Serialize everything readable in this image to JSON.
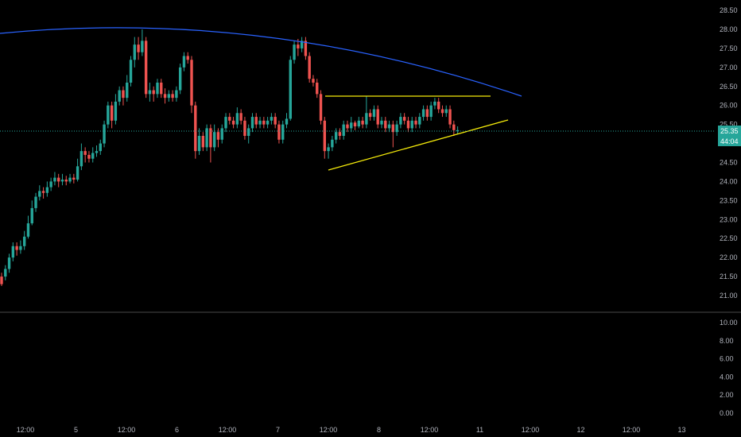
{
  "colors": {
    "background": "#000000",
    "up_candle": "#26a69a",
    "down_candle": "#ef5350",
    "curve": "#2962ff",
    "trendline": "#f5eb0a",
    "price_line": "#26a69a",
    "axis_text": "#b2b5be",
    "separator": "#4a4a4a"
  },
  "price_label": {
    "price": "25.35",
    "countdown": "44:04"
  },
  "chart_data": [
    {
      "type": "candlestick",
      "yaxis": {
        "ticks": [
          "28.50",
          "28.00",
          "27.50",
          "27.00",
          "26.50",
          "26.00",
          "25.50",
          "25.00",
          "24.50",
          "24.00",
          "23.50",
          "23.00",
          "22.50",
          "22.00",
          "21.50",
          "21.00"
        ],
        "range": [
          20.75,
          28.6
        ]
      },
      "xaxis": {
        "ticks": [
          "12:00",
          "5",
          "12:00",
          "6",
          "12:00",
          "7",
          "12:00",
          "8",
          "12:00",
          "11",
          "12:00",
          "12",
          "12:00",
          "13"
        ]
      },
      "grid": false,
      "last_price": 25.35,
      "candles": [
        [
          21.5,
          21.3,
          21.6,
          21.25
        ],
        [
          21.5,
          21.7,
          21.8,
          21.4
        ],
        [
          21.7,
          22.0,
          22.1,
          21.6
        ],
        [
          22.0,
          22.3,
          22.4,
          21.9
        ],
        [
          22.3,
          22.2,
          22.4,
          22.05
        ],
        [
          22.2,
          22.3,
          22.45,
          22.1
        ],
        [
          22.3,
          22.55,
          22.7,
          22.2
        ],
        [
          22.55,
          22.9,
          23.1,
          22.5
        ],
        [
          22.9,
          23.3,
          23.5,
          22.85
        ],
        [
          23.3,
          23.6,
          23.7,
          23.2
        ],
        [
          23.6,
          23.75,
          23.9,
          23.5
        ],
        [
          23.75,
          23.7,
          23.85,
          23.55
        ],
        [
          23.7,
          23.85,
          24.0,
          23.6
        ],
        [
          23.85,
          24.0,
          24.1,
          23.75
        ],
        [
          24.0,
          24.1,
          24.25,
          23.9
        ],
        [
          24.1,
          24.0,
          24.2,
          23.85
        ],
        [
          24.0,
          24.05,
          24.2,
          23.9
        ],
        [
          24.05,
          24.0,
          24.15,
          23.9
        ],
        [
          24.0,
          24.1,
          24.2,
          23.95
        ],
        [
          24.1,
          24.05,
          24.2,
          23.95
        ],
        [
          24.05,
          24.4,
          24.6,
          24.0
        ],
        [
          24.4,
          24.8,
          25.0,
          24.3
        ],
        [
          24.8,
          24.7,
          24.9,
          24.5
        ],
        [
          24.7,
          24.6,
          24.8,
          24.5
        ],
        [
          24.6,
          24.75,
          24.9,
          24.5
        ],
        [
          24.75,
          24.8,
          24.95,
          24.65
        ],
        [
          24.8,
          25.0,
          25.1,
          24.7
        ],
        [
          25.0,
          25.5,
          25.6,
          24.9
        ],
        [
          25.5,
          26.0,
          26.1,
          25.4
        ],
        [
          26.0,
          25.6,
          26.1,
          25.4
        ],
        [
          25.6,
          26.1,
          26.3,
          25.5
        ],
        [
          26.1,
          26.4,
          26.5,
          26.0
        ],
        [
          26.4,
          26.2,
          26.5,
          26.0
        ],
        [
          26.2,
          26.6,
          26.8,
          26.1
        ],
        [
          26.6,
          27.2,
          27.3,
          26.5
        ],
        [
          27.2,
          27.6,
          27.8,
          27.0
        ],
        [
          27.6,
          27.4,
          27.8,
          27.2
        ],
        [
          27.4,
          27.7,
          28.0,
          27.3
        ],
        [
          27.7,
          26.3,
          27.8,
          26.2
        ],
        [
          26.3,
          26.4,
          26.6,
          26.1
        ],
        [
          26.4,
          26.3,
          26.5,
          26.1
        ],
        [
          26.3,
          26.6,
          26.7,
          26.2
        ],
        [
          26.6,
          26.3,
          26.7,
          26.2
        ],
        [
          26.3,
          26.2,
          26.45,
          26.05
        ],
        [
          26.2,
          26.3,
          26.4,
          26.1
        ],
        [
          26.3,
          26.2,
          26.4,
          26.1
        ],
        [
          26.2,
          26.4,
          26.5,
          26.1
        ],
        [
          26.4,
          27.0,
          27.1,
          26.3
        ],
        [
          27.0,
          27.3,
          27.4,
          26.9
        ],
        [
          27.3,
          27.2,
          27.4,
          27.1
        ],
        [
          27.2,
          26.0,
          27.3,
          25.8
        ],
        [
          26.0,
          24.8,
          26.1,
          24.6
        ],
        [
          24.8,
          25.2,
          25.4,
          24.7
        ],
        [
          25.2,
          24.9,
          25.3,
          24.8
        ],
        [
          24.9,
          25.4,
          25.5,
          24.8
        ],
        [
          25.4,
          24.9,
          25.5,
          24.5
        ],
        [
          24.9,
          25.3,
          25.5,
          24.8
        ],
        [
          25.3,
          25.1,
          25.4,
          24.9
        ],
        [
          25.1,
          25.4,
          25.5,
          25.0
        ],
        [
          25.4,
          25.7,
          25.8,
          25.3
        ],
        [
          25.7,
          25.6,
          25.8,
          25.5
        ],
        [
          25.6,
          25.5,
          25.7,
          25.4
        ],
        [
          25.5,
          25.8,
          25.95,
          25.4
        ],
        [
          25.8,
          25.6,
          25.9,
          25.5
        ],
        [
          25.6,
          25.2,
          25.7,
          25.1
        ],
        [
          25.2,
          25.4,
          25.5,
          25.0
        ],
        [
          25.4,
          25.7,
          25.8,
          25.3
        ],
        [
          25.7,
          25.5,
          25.8,
          25.4
        ],
        [
          25.5,
          25.6,
          25.7,
          25.4
        ],
        [
          25.6,
          25.5,
          25.7,
          25.4
        ],
        [
          25.5,
          25.6,
          25.7,
          25.4
        ],
        [
          25.6,
          25.7,
          25.8,
          25.5
        ],
        [
          25.7,
          25.5,
          25.8,
          25.4
        ],
        [
          25.5,
          25.1,
          25.6,
          25.0
        ],
        [
          25.1,
          25.5,
          25.6,
          25.0
        ],
        [
          25.5,
          25.65,
          25.8,
          25.4
        ],
        [
          25.65,
          27.2,
          27.3,
          25.6
        ],
        [
          27.2,
          27.6,
          27.7,
          27.1
        ],
        [
          27.6,
          27.5,
          27.75,
          27.3
        ],
        [
          27.5,
          27.7,
          27.8,
          27.4
        ],
        [
          27.7,
          27.3,
          27.8,
          27.2
        ],
        [
          27.3,
          26.7,
          27.4,
          26.6
        ],
        [
          26.7,
          26.6,
          26.8,
          26.5
        ],
        [
          26.6,
          26.3,
          26.7,
          26.2
        ],
        [
          26.3,
          25.6,
          26.4,
          25.5
        ],
        [
          25.6,
          24.8,
          25.7,
          24.6
        ],
        [
          24.8,
          24.9,
          25.0,
          24.6
        ],
        [
          24.9,
          25.1,
          25.2,
          24.8
        ],
        [
          25.1,
          25.3,
          25.4,
          25.0
        ],
        [
          25.3,
          25.2,
          25.4,
          25.1
        ],
        [
          25.2,
          25.5,
          25.6,
          25.1
        ],
        [
          25.5,
          25.4,
          25.6,
          25.3
        ],
        [
          25.4,
          25.55,
          25.7,
          25.3
        ],
        [
          25.55,
          25.45,
          25.6,
          25.35
        ],
        [
          25.45,
          25.6,
          25.7,
          25.4
        ],
        [
          25.6,
          25.5,
          25.7,
          25.4
        ],
        [
          25.5,
          25.8,
          26.25,
          25.4
        ],
        [
          25.8,
          25.7,
          25.9,
          25.6
        ],
        [
          25.7,
          25.9,
          26.0,
          25.6
        ],
        [
          25.9,
          25.5,
          26.0,
          25.4
        ],
        [
          25.5,
          25.6,
          25.7,
          25.4
        ],
        [
          25.6,
          25.4,
          25.7,
          25.3
        ],
        [
          25.4,
          25.5,
          25.6,
          25.3
        ],
        [
          25.5,
          25.3,
          25.6,
          24.9
        ],
        [
          25.3,
          25.5,
          25.6,
          25.2
        ],
        [
          25.5,
          25.7,
          25.8,
          25.4
        ],
        [
          25.7,
          25.6,
          25.8,
          25.5
        ],
        [
          25.6,
          25.4,
          25.7,
          25.3
        ],
        [
          25.4,
          25.6,
          25.7,
          25.3
        ],
        [
          25.6,
          25.5,
          25.7,
          25.4
        ],
        [
          25.5,
          25.7,
          25.8,
          25.4
        ],
        [
          25.7,
          25.9,
          26.0,
          25.6
        ],
        [
          25.9,
          25.7,
          26.0,
          25.6
        ],
        [
          25.7,
          26.0,
          26.1,
          25.6
        ],
        [
          26.0,
          26.1,
          26.2,
          25.9
        ],
        [
          26.1,
          25.9,
          26.2,
          25.8
        ],
        [
          25.9,
          25.8,
          26.0,
          25.7
        ],
        [
          25.8,
          25.9,
          26.0,
          25.7
        ],
        [
          25.9,
          25.5,
          26.0,
          25.4
        ],
        [
          25.5,
          25.35,
          25.6,
          25.2
        ],
        [
          25.35,
          25.35,
          25.45,
          25.25
        ]
      ],
      "drawings": {
        "resistance_level": {
          "price": 26.25
        },
        "support_trendline": {
          "from": [
            24.35
          ],
          "to": [
            25.65
          ]
        },
        "arc": "curved blue line across top"
      }
    },
    {
      "type": "bar",
      "yaxis": {
        "ticks": [
          "10.00",
          "8.00",
          "6.00",
          "4.00",
          "2.00",
          "0.00"
        ],
        "range": [
          -0.8,
          11.5
        ]
      },
      "values": []
    }
  ]
}
